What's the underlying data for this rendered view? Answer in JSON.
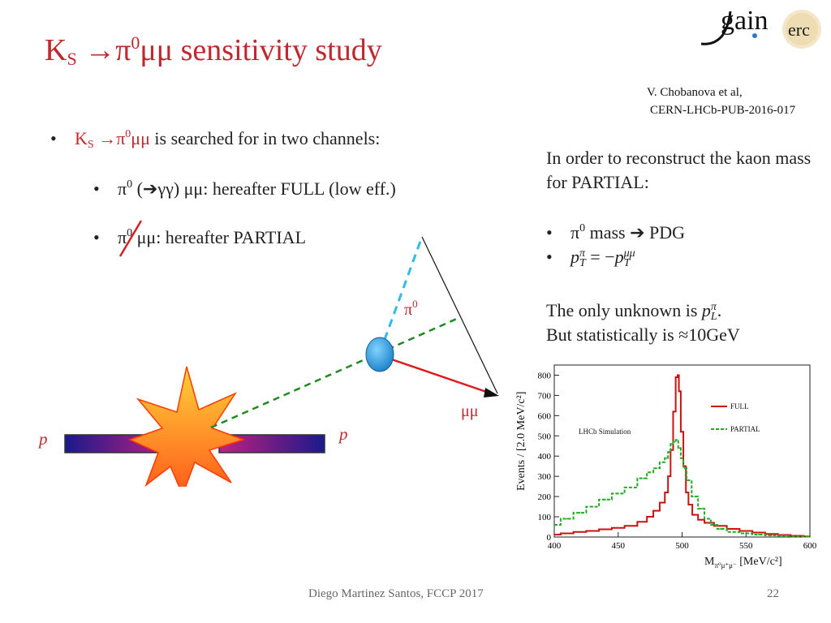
{
  "slide": {
    "title": {
      "k": "K",
      "s": "S",
      "arrow": " →π",
      "zero": "0",
      "rest": "μμ sensitivity study"
    },
    "reference": {
      "line1": "V. Chobanova et al,",
      "line2": "CERN-LHCb-PUB-2016-017"
    },
    "bullets": {
      "main": {
        "k": "K",
        "s": "S",
        "arrow": " →π",
        "zero": "0",
        "mu": "μμ",
        "text": " is searched for in two channels:"
      },
      "full": {
        "pi": "π",
        "zero": "0",
        "text": " (➔γγ) μμ: hereafter FULL  (low eff.)"
      },
      "partial": {
        "pi": "π",
        "zero": "0",
        "text": " μμ: hereafter PARTIAL"
      }
    },
    "right_text": {
      "intro": "In order to reconstruct the kaon mass for PARTIAL:",
      "b1": {
        "pi": "π",
        "zero": "0",
        "text": " mass ➔ PDG"
      },
      "b2": {
        "p1": "p",
        "sup1": "π",
        "sub1": "T",
        "eq": " = −",
        "p2": "p",
        "sup2": "μμ",
        "sub2": "T"
      },
      "unknown": {
        "text": "The only unknown is ",
        "p": "p",
        "sup": "π",
        "sub": "L",
        "end": "."
      },
      "stat": "But statistically is ≈10GeV"
    },
    "diagram": {
      "pi0": "π",
      "pi0_sup": "0",
      "mumu": "μμ",
      "p_left": "p",
      "p_right": "p"
    },
    "logo": {
      "gain": "gain",
      "erc": "erc"
    },
    "footer": "Diego Martinez Santos, FCCP 2017",
    "page_number": "22"
  },
  "chart_data": {
    "type": "line",
    "annotation": "LHCb Simulation",
    "ylabel": "Events / [2.0 MeV/c²]",
    "xlabel": "M_{π⁰μ⁺μ⁻} [MeV/c²]",
    "xlabel_main": "M",
    "xlabel_sub": "π⁰μ⁺μ⁻",
    "xlabel_unit": " [MeV/c²]",
    "xlim": [
      400,
      600
    ],
    "ylim": [
      0,
      850
    ],
    "xticks": [
      400,
      450,
      500,
      550,
      600
    ],
    "yticks": [
      0,
      100,
      200,
      300,
      400,
      500,
      600,
      700,
      800
    ],
    "legend_position": "top-right",
    "series": [
      {
        "name": "FULL",
        "color": "#cc1111",
        "style": "solid",
        "x": [
          400,
          410,
          420,
          430,
          440,
          450,
          460,
          470,
          475,
          480,
          485,
          488,
          490,
          492,
          494,
          496,
          497,
          498,
          500,
          502,
          504,
          506,
          510,
          515,
          520,
          530,
          540,
          550,
          560,
          570,
          580,
          590,
          600
        ],
        "y": [
          12,
          18,
          25,
          30,
          38,
          45,
          55,
          75,
          100,
          130,
          170,
          220,
          300,
          430,
          620,
          790,
          800,
          720,
          520,
          350,
          220,
          160,
          110,
          85,
          70,
          55,
          40,
          30,
          22,
          15,
          10,
          6,
          3
        ]
      },
      {
        "name": "PARTIAL",
        "color": "#22aa22",
        "style": "dashed",
        "x": [
          400,
          410,
          420,
          430,
          440,
          450,
          460,
          470,
          475,
          480,
          485,
          488,
          490,
          492,
          494,
          496,
          498,
          500,
          502,
          505,
          510,
          515,
          520,
          525,
          530,
          540,
          550,
          560,
          570,
          580,
          590,
          600
        ],
        "y": [
          60,
          90,
          120,
          150,
          185,
          215,
          245,
          290,
          320,
          340,
          370,
          390,
          420,
          460,
          470,
          480,
          440,
          390,
          340,
          280,
          200,
          140,
          90,
          60,
          40,
          25,
          18,
          12,
          8,
          5,
          3,
          2
        ]
      }
    ]
  }
}
